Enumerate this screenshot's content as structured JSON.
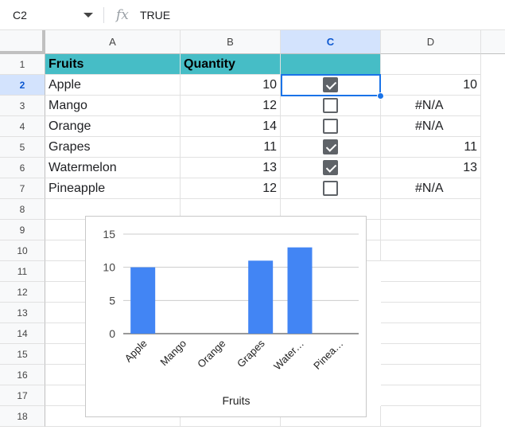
{
  "formula_bar": {
    "name_box": "C2",
    "fx_label": "fx",
    "formula": "TRUE"
  },
  "columns": [
    "A",
    "B",
    "C",
    "D"
  ],
  "rows": [
    "1",
    "2",
    "3",
    "4",
    "5",
    "6",
    "7",
    "8",
    "9",
    "10",
    "11",
    "12",
    "13",
    "14",
    "15",
    "16",
    "17",
    "18"
  ],
  "table": {
    "header": {
      "a": "Fruits",
      "b": "Quantity"
    },
    "data": [
      {
        "fruit": "Apple",
        "qty": "10",
        "checked": true,
        "d": "10"
      },
      {
        "fruit": "Mango",
        "qty": "12",
        "checked": false,
        "d": "#N/A"
      },
      {
        "fruit": "Orange",
        "qty": "14",
        "checked": false,
        "d": "#N/A"
      },
      {
        "fruit": "Grapes",
        "qty": "11",
        "checked": true,
        "d": "11"
      },
      {
        "fruit": "Watermelon",
        "qty": "13",
        "checked": true,
        "d": "13"
      },
      {
        "fruit": "Pineapple",
        "qty": "12",
        "checked": false,
        "d": "#N/A"
      }
    ]
  },
  "colors": {
    "header_fill": "#46bdc6",
    "bar_color": "#4285f4",
    "selection": "#1a73e8"
  },
  "chart_data": {
    "type": "bar",
    "categories": [
      "Apple",
      "Mango",
      "Orange",
      "Grapes",
      "Water…",
      "Pinea…"
    ],
    "values": [
      10,
      null,
      null,
      11,
      13,
      null
    ],
    "title": "",
    "xlabel": "Fruits",
    "ylabel": "",
    "ylim": [
      0,
      15
    ],
    "yticks": [
      0,
      5,
      10,
      15
    ],
    "grid": true,
    "legend": "none"
  }
}
